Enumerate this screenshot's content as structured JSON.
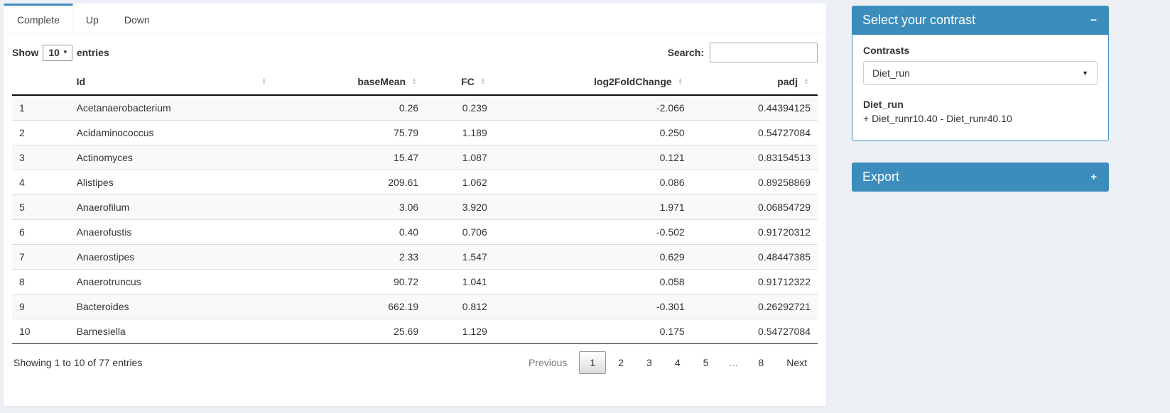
{
  "colors": {
    "accent": "#3c8dbc",
    "page_bg": "#ecf0f5"
  },
  "icons": {
    "sort_asc": "▲",
    "sort_desc": "▼",
    "caret_down_small": "▼",
    "caret_down": "▼",
    "collapse": "−",
    "expand": "+"
  },
  "tabs": [
    {
      "label": "Complete",
      "active": true
    },
    {
      "label": "Up",
      "active": false
    },
    {
      "label": "Down",
      "active": false
    }
  ],
  "length_control": {
    "prefix": "Show",
    "value": "10",
    "suffix": "entries"
  },
  "search": {
    "label": "Search:",
    "value": ""
  },
  "table": {
    "columns": [
      {
        "key": "num",
        "label": "",
        "align": "left",
        "sortable": false,
        "width": "col-num"
      },
      {
        "key": "id",
        "label": "Id",
        "align": "left",
        "sortable": true,
        "width": "col-id"
      },
      {
        "key": "baseMean",
        "label": "baseMean",
        "align": "right",
        "sortable": true,
        "width": "col-bm"
      },
      {
        "key": "fc",
        "label": "FC",
        "align": "right",
        "sortable": true,
        "width": "col-fc"
      },
      {
        "key": "log2fc",
        "label": "log2FoldChange",
        "align": "right",
        "sortable": true,
        "width": "col-lfc"
      },
      {
        "key": "padj",
        "label": "padj",
        "align": "right",
        "sortable": true,
        "width": "col-padj"
      }
    ],
    "rows": [
      {
        "num": "1",
        "id": "Acetanaerobacterium",
        "baseMean": "0.26",
        "fc": "0.239",
        "log2fc": "-2.066",
        "padj": "0.44394125"
      },
      {
        "num": "2",
        "id": "Acidaminococcus",
        "baseMean": "75.79",
        "fc": "1.189",
        "log2fc": "0.250",
        "padj": "0.54727084"
      },
      {
        "num": "3",
        "id": "Actinomyces",
        "baseMean": "15.47",
        "fc": "1.087",
        "log2fc": "0.121",
        "padj": "0.83154513"
      },
      {
        "num": "4",
        "id": "Alistipes",
        "baseMean": "209.61",
        "fc": "1.062",
        "log2fc": "0.086",
        "padj": "0.89258869"
      },
      {
        "num": "5",
        "id": "Anaerofilum",
        "baseMean": "3.06",
        "fc": "3.920",
        "log2fc": "1.971",
        "padj": "0.06854729"
      },
      {
        "num": "6",
        "id": "Anaerofustis",
        "baseMean": "0.40",
        "fc": "0.706",
        "log2fc": "-0.502",
        "padj": "0.91720312"
      },
      {
        "num": "7",
        "id": "Anaerostipes",
        "baseMean": "2.33",
        "fc": "1.547",
        "log2fc": "0.629",
        "padj": "0.48447385"
      },
      {
        "num": "8",
        "id": "Anaerotruncus",
        "baseMean": "90.72",
        "fc": "1.041",
        "log2fc": "0.058",
        "padj": "0.91712322"
      },
      {
        "num": "9",
        "id": "Bacteroides",
        "baseMean": "662.19",
        "fc": "0.812",
        "log2fc": "-0.301",
        "padj": "0.26292721"
      },
      {
        "num": "10",
        "id": "Barnesiella",
        "baseMean": "25.69",
        "fc": "1.129",
        "log2fc": "0.175",
        "padj": "0.54727084"
      }
    ]
  },
  "footer": {
    "info": "Showing 1 to 10 of 77 entries",
    "pagination": [
      {
        "label": "Previous",
        "state": "disabled"
      },
      {
        "label": "1",
        "state": "current"
      },
      {
        "label": "2",
        "state": "page"
      },
      {
        "label": "3",
        "state": "page"
      },
      {
        "label": "4",
        "state": "page"
      },
      {
        "label": "5",
        "state": "page"
      },
      {
        "label": "…",
        "state": "ellipsis"
      },
      {
        "label": "8",
        "state": "page"
      },
      {
        "label": "Next",
        "state": "page"
      }
    ]
  },
  "contrast_box": {
    "title": "Select your contrast",
    "label": "Contrasts",
    "selected": "Diet_run",
    "detail_title": "Diet_run",
    "detail_text": "+ Diet_runr10.40 - Diet_runr40.10"
  },
  "export_box": {
    "title": "Export"
  }
}
